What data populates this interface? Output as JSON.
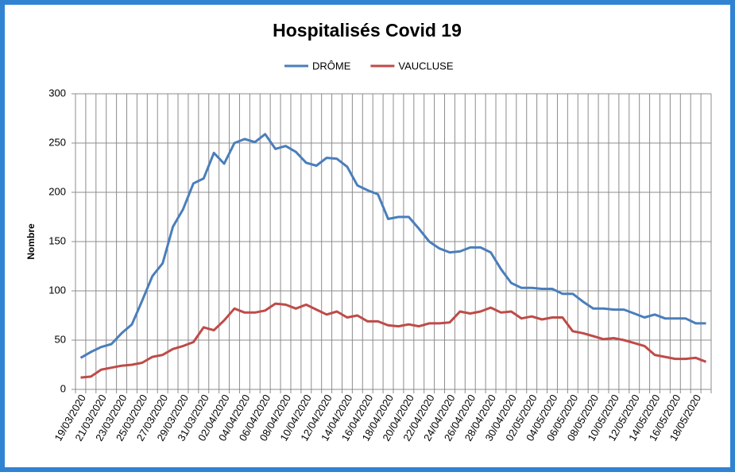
{
  "chart_data": {
    "type": "line",
    "title": "Hospitalisés Covid 19",
    "y_label": "Nombre",
    "categories": [
      "19/03/2020",
      null,
      "21/03/2020",
      null,
      "23/03/2020",
      null,
      "25/03/2020",
      null,
      "27/03/2020",
      null,
      "29/03/2020",
      null,
      "31/03/2020",
      null,
      "02/04/2020",
      null,
      "04/04/2020",
      null,
      "06/04/2020",
      null,
      "08/04/2020",
      null,
      "10/04/2020",
      null,
      "12/04/2020",
      null,
      "14/04/2020",
      null,
      "16/04/2020",
      null,
      "18/04/2020",
      null,
      "20/04/2020",
      null,
      "22/04/2020",
      null,
      "24/04/2020",
      null,
      "26/04/2020",
      null,
      "28/04/2020",
      null,
      "30/04/2020",
      null,
      "02/05/2020",
      null,
      "04/05/2020",
      null,
      "06/05/2020",
      null,
      "08/05/2020",
      null,
      "10/05/2020",
      null,
      "12/05/2020",
      null,
      "14/05/2020",
      null,
      "16/05/2020",
      null,
      "18/05/2020",
      null
    ],
    "series": [
      {
        "name": "DRÔME",
        "color": "#4a7ebb",
        "values": [
          32,
          38,
          43,
          46,
          57,
          66,
          90,
          115,
          128,
          165,
          183,
          209,
          214,
          240,
          229,
          250,
          254,
          251,
          259,
          244,
          247,
          241,
          230,
          227,
          235,
          234,
          226,
          207,
          202,
          198,
          173,
          175,
          175,
          163,
          150,
          143,
          139,
          140,
          144,
          144,
          139,
          122,
          108,
          103,
          103,
          102,
          102,
          97,
          97,
          89,
          82,
          82,
          81,
          81,
          77,
          73,
          76,
          72,
          72,
          72,
          67,
          67
        ]
      },
      {
        "name": "VAUCLUSE",
        "color": "#be4b48",
        "values": [
          12,
          13,
          20,
          22,
          24,
          25,
          27,
          33,
          35,
          41,
          44,
          48,
          63,
          60,
          70,
          82,
          78,
          78,
          80,
          87,
          86,
          82,
          86,
          81,
          76,
          79,
          73,
          75,
          69,
          69,
          65,
          64,
          66,
          64,
          67,
          67,
          68,
          79,
          77,
          79,
          83,
          78,
          79,
          72,
          74,
          71,
          73,
          73,
          59,
          57,
          54,
          51,
          52,
          50,
          47,
          44,
          35,
          33,
          31,
          31,
          32,
          28
        ]
      }
    ],
    "ylim": [
      0,
      300
    ],
    "yticks": [
      0,
      50,
      100,
      150,
      200,
      250,
      300
    ],
    "grid": true,
    "legend": "top"
  }
}
